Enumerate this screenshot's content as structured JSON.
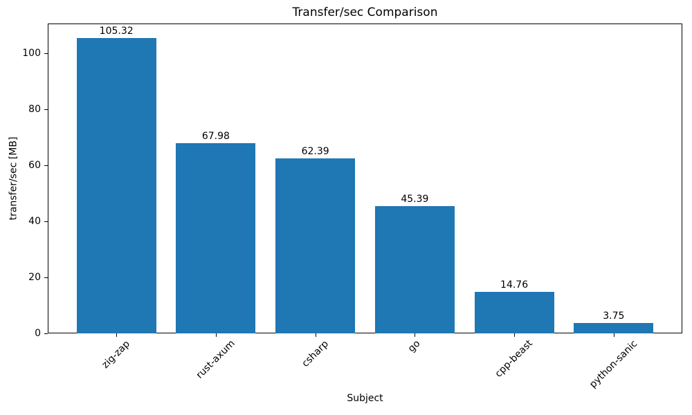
{
  "chart_data": {
    "type": "bar",
    "title": "Transfer/sec Comparison",
    "xlabel": "Subject",
    "ylabel": "transfer/sec [MB]",
    "categories": [
      "zig-zap",
      "rust-axum",
      "csharp",
      "go",
      "cpp-beast",
      "python-sanic"
    ],
    "values": [
      105.32,
      67.98,
      62.39,
      45.39,
      14.76,
      3.75
    ],
    "bar_labels": [
      "105.32",
      "67.98",
      "62.39",
      "45.39",
      "14.76",
      "3.75"
    ],
    "yticks": [
      0,
      20,
      40,
      60,
      80,
      100
    ],
    "ylim": [
      0,
      110.59
    ],
    "bar_color": "#1f77b4",
    "axis_color": "#000000",
    "grid": false,
    "legend": "none"
  }
}
